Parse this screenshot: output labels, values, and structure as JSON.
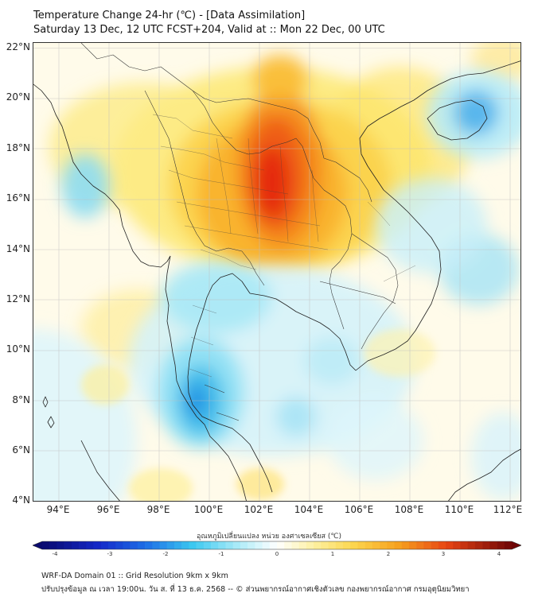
{
  "title": {
    "line1": "Temperature Change 24-hr (℃) - [Data Assimilation]",
    "line2": "Saturday 13 Dec, 12 UTC FCST+204, Valid at :: Mon 22 Dec, 00 UTC"
  },
  "axes": {
    "lat_labels": [
      "22°N",
      "20°N",
      "18°N",
      "16°N",
      "14°N",
      "12°N",
      "10°N",
      "8°N",
      "6°N",
      "4°N"
    ],
    "lon_labels": [
      "94°E",
      "96°E",
      "98°E",
      "100°E",
      "102°E",
      "104°E",
      "106°E",
      "108°E",
      "110°E",
      "112°E"
    ]
  },
  "colorbar": {
    "label": "อุณหภูมิเปลี่ยนแปลง หน่วย องศาเซลเซียส (℃)",
    "min": -4,
    "max": 4,
    "tick_labels": [
      "-4",
      "-3",
      "-2",
      "-1",
      "0",
      "1",
      "2",
      "3",
      "4"
    ]
  },
  "footer": {
    "line1": "WRF-DA Domain 01 :: Grid Resolution 9km x 9km",
    "line2": "ปรับปรุงข้อมูล ณ เวลา 19:00น. วัน ส. ที่ 13 ธ.ค. 2568 -- © ส่วนพยากรณ์อากาศเชิงตัวเลข กองพยากรณ์อากาศ กรมอุตุนิยมวิทยา"
  },
  "colors": {
    "warm_peak": "#e3260e",
    "warm_mid": "#f6a51c",
    "warm_low": "#fde46a",
    "cool_low": "#b9ecf6",
    "cool_mid": "#5cd2f0",
    "cool_peak": "#1f8fe3",
    "coastline": "#222222"
  }
}
